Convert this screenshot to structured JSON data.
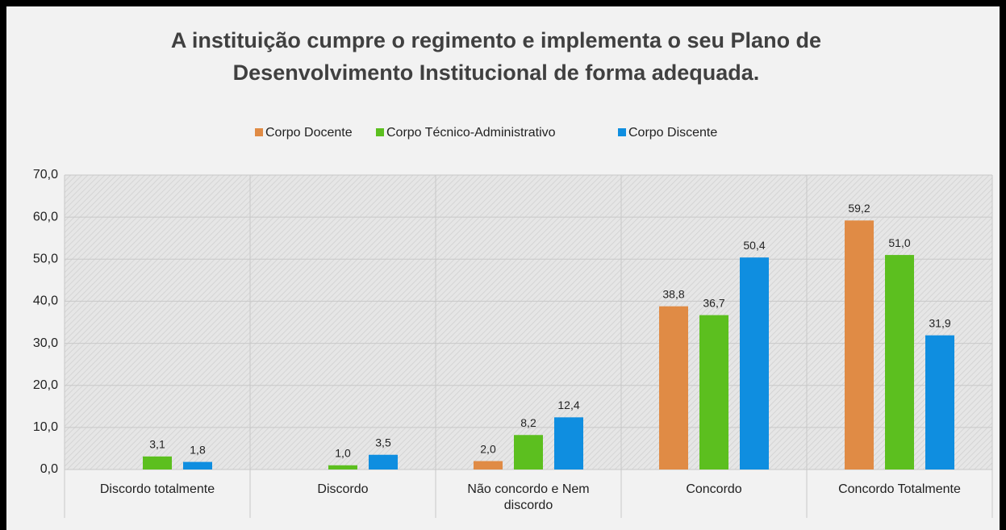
{
  "chart_data": {
    "type": "bar",
    "title": "A instituição cumpre o regimento e implementa o seu Plano de Desenvolvimento Institucional de forma adequada.",
    "categories": [
      "Discordo totalmente",
      "Discordo",
      "Não concordo e Nem discordo",
      "Concordo",
      "Concordo Totalmente"
    ],
    "series": [
      {
        "name": "Corpo Docente",
        "color": "#e08b45",
        "values": [
          null,
          null,
          2.0,
          38.8,
          59.2
        ],
        "value_labels": [
          null,
          null,
          "2,0",
          "38,8",
          "59,2"
        ]
      },
      {
        "name": "Corpo Técnico-Administrativo",
        "color": "#5cbf1f",
        "values": [
          3.1,
          1.0,
          8.2,
          36.7,
          51.0
        ],
        "value_labels": [
          "3,1",
          "1,0",
          "8,2",
          "36,7",
          "51,0"
        ]
      },
      {
        "name": "Corpo Discente",
        "color": "#0f8ee0",
        "values": [
          1.8,
          3.5,
          12.4,
          50.4,
          31.9
        ],
        "value_labels": [
          "1,8",
          "3,5",
          "12,4",
          "50,4",
          "31,9"
        ]
      }
    ],
    "ylim": [
      0,
      70
    ],
    "yticks": [
      {
        "value": 0,
        "label": "0,0"
      },
      {
        "value": 10,
        "label": "10,0"
      },
      {
        "value": 20,
        "label": "20,0"
      },
      {
        "value": 30,
        "label": "30,0"
      },
      {
        "value": 40,
        "label": "40,0"
      },
      {
        "value": 50,
        "label": "50,0"
      },
      {
        "value": 60,
        "label": "60,0"
      },
      {
        "value": 70,
        "label": "70,0"
      }
    ],
    "grid": true,
    "legend": "top"
  }
}
